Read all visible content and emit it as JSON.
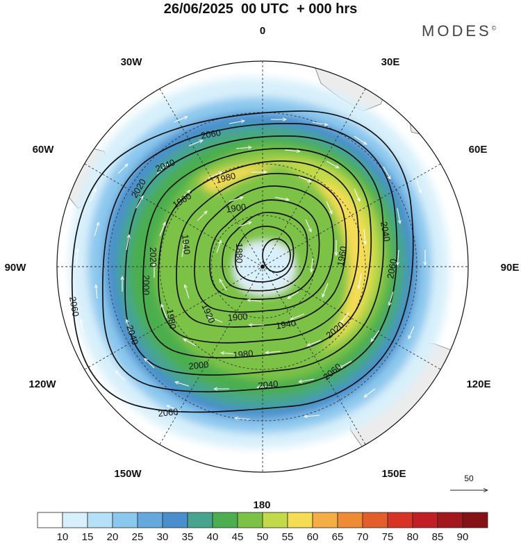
{
  "title": "26/06/2025  00 UTC  + 000 hrs",
  "brand": "MODES",
  "brand_mark": "©",
  "longitude_labels": [
    {
      "text": "0",
      "lon": 0
    },
    {
      "text": "30E",
      "lon": 30
    },
    {
      "text": "60E",
      "lon": 60
    },
    {
      "text": "90E",
      "lon": 90
    },
    {
      "text": "120E",
      "lon": 120
    },
    {
      "text": "150E",
      "lon": 150
    },
    {
      "text": "180",
      "lon": 180
    },
    {
      "text": "150W",
      "lon": -150
    },
    {
      "text": "120W",
      "lon": -120
    },
    {
      "text": "90W",
      "lon": -90
    },
    {
      "text": "60W",
      "lon": -60
    },
    {
      "text": "30W",
      "lon": -30
    }
  ],
  "contours": [
    {
      "value": 2060,
      "labels": [
        "2060",
        "2060",
        "2060",
        "2060",
        "2060"
      ]
    },
    {
      "value": 2040,
      "labels": [
        "2040",
        "2040",
        "2040",
        "2040"
      ]
    },
    {
      "value": 2020,
      "labels": [
        "2020",
        "2020",
        "2020"
      ]
    },
    {
      "value": 2000,
      "labels": [
        "2000",
        "2000"
      ]
    },
    {
      "value": 1980,
      "labels": [
        "1980",
        "1980",
        "1980"
      ]
    },
    {
      "value": 1960,
      "labels": [
        "1960",
        "1960"
      ]
    },
    {
      "value": 1940,
      "labels": [
        "1940",
        "1940"
      ]
    },
    {
      "value": 1920,
      "labels": [
        "1920"
      ]
    },
    {
      "value": 1900,
      "labels": [
        "1900",
        "1900"
      ]
    },
    {
      "value": 1880,
      "labels": [
        "1880"
      ]
    }
  ],
  "reference_vector": {
    "label": "50"
  },
  "colorbar": {
    "ticks": [
      "10",
      "15",
      "20",
      "25",
      "30",
      "35",
      "40",
      "45",
      "50",
      "55",
      "60",
      "65",
      "70",
      "75",
      "80",
      "85",
      "90"
    ],
    "colors": [
      "#ffffff",
      "#d8f0fb",
      "#b4e1f7",
      "#8cc8ee",
      "#64a8de",
      "#4a8fcd",
      "#47a58f",
      "#4cae4e",
      "#7bc246",
      "#c2d94a",
      "#f5dc55",
      "#f5ad45",
      "#ef8a35",
      "#e45e2c",
      "#d83327",
      "#c01f25",
      "#a3181c",
      "#851214"
    ]
  }
}
